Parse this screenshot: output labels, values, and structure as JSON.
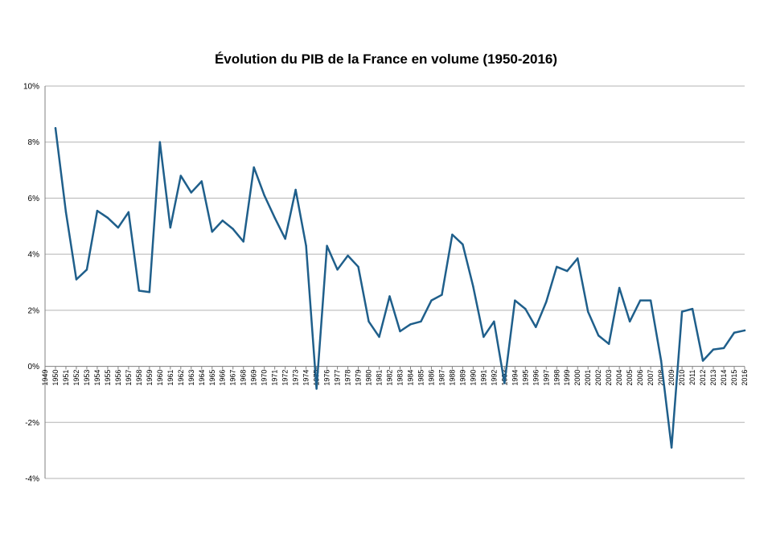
{
  "chart_data": {
    "type": "line",
    "title": "Évolution du PIB de la France en volume (1950-2016)",
    "xlabel": "",
    "ylabel": "",
    "ylim": [
      -4,
      10
    ],
    "y_ticks": [
      "10%",
      "8%",
      "6%",
      "4%",
      "2%",
      "0%",
      "-2%",
      "-4%"
    ],
    "y_tick_values": [
      10,
      8,
      6,
      4,
      2,
      0,
      -2,
      -4
    ],
    "grid": true,
    "legend": "none",
    "line_color": "#1F5F8B",
    "categories": [
      "1949",
      "1950",
      "1951",
      "1952",
      "1953",
      "1954",
      "1955",
      "1956",
      "1957",
      "1958",
      "1959",
      "1960",
      "1961",
      "1962",
      "1963",
      "1964",
      "1965",
      "1966",
      "1967",
      "1968",
      "1969",
      "1970",
      "1971",
      "1972",
      "1973",
      "1974",
      "1975",
      "1976",
      "1977",
      "1978",
      "1979",
      "1980",
      "1981",
      "1982",
      "1983",
      "1984",
      "1985",
      "1986",
      "1987",
      "1988",
      "1989",
      "1990",
      "1991",
      "1992",
      "1993",
      "1994",
      "1995",
      "1996",
      "1997",
      "1998",
      "1999",
      "2000",
      "2001",
      "2002",
      "2003",
      "2004",
      "2005",
      "2006",
      "2007",
      "2008",
      "2009",
      "2010",
      "2011",
      "2012",
      "2013",
      "2014",
      "2015",
      "2016"
    ],
    "series": [
      {
        "values": [
          null,
          8.5,
          5.5,
          3.1,
          3.45,
          5.55,
          5.3,
          4.95,
          5.5,
          2.7,
          2.65,
          8.0,
          4.95,
          6.8,
          6.2,
          6.6,
          4.8,
          5.2,
          4.9,
          4.45,
          7.1,
          6.1,
          5.3,
          4.55,
          6.3,
          4.3,
          -0.8,
          4.3,
          3.45,
          3.95,
          3.55,
          1.6,
          1.05,
          2.5,
          1.25,
          1.5,
          1.6,
          2.35,
          2.55,
          4.7,
          4.35,
          2.85,
          1.05,
          1.6,
          -0.6,
          2.35,
          2.05,
          1.4,
          2.3,
          3.55,
          3.4,
          3.85,
          1.95,
          1.1,
          0.8,
          2.8,
          1.6,
          2.35,
          2.35,
          0.2,
          -2.9,
          1.95,
          2.05,
          0.2,
          0.6,
          0.65,
          1.2,
          1.28
        ]
      }
    ]
  }
}
